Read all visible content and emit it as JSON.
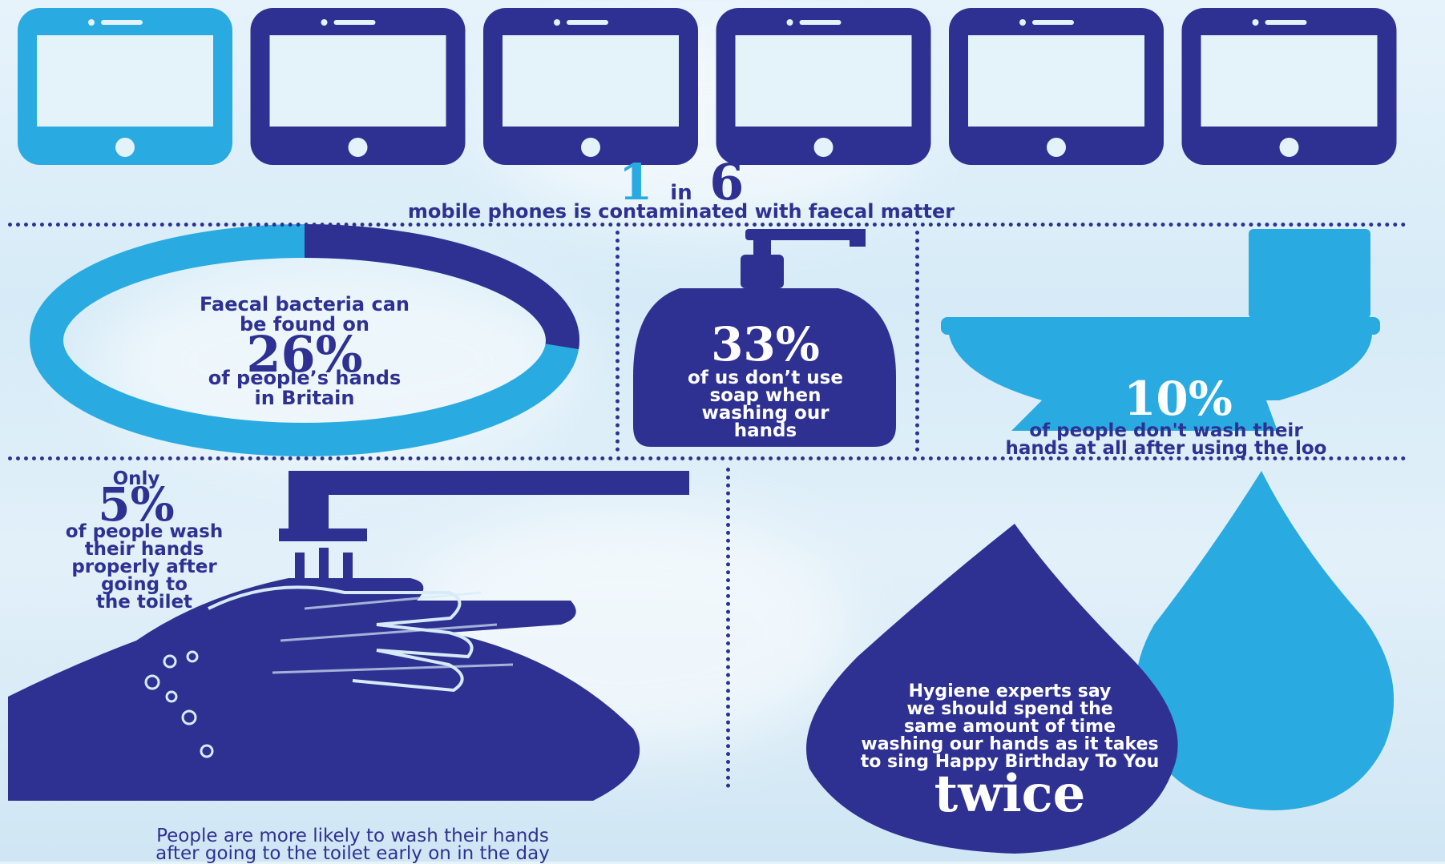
{
  "colors": {
    "navy": "#2e3192",
    "light_blue": "#29abe2",
    "white": "#ffffff"
  },
  "phones": {
    "icon": "mobile-phone-icon",
    "total": 6,
    "highlighted": 1,
    "stat_numerator": "1",
    "stat_in": "in",
    "stat_denominator": "6",
    "caption": "mobile phones is contaminated with faecal matter"
  },
  "hands": {
    "line1": "Faecal bacteria can",
    "line2": "be found on",
    "stat": "26%",
    "line3": "of people’s hands",
    "line4": "in Britain",
    "percent_value": 26
  },
  "soap": {
    "icon": "soap-bottle-icon",
    "stat": "33%",
    "line1": "of us don’t use",
    "line2": "soap when",
    "line3": "washing our",
    "line4": "hands"
  },
  "toilet": {
    "icon": "toilet-icon",
    "stat": "10%",
    "line1": "of people don't wash their",
    "line2": "hands at all after using the loo"
  },
  "washing": {
    "icon": "washing-hands-icon",
    "only": "Only",
    "stat": "5%",
    "line1": "of people wash",
    "line2": "their hands",
    "line3": "properly after",
    "line4": "going to",
    "line5": "the toilet",
    "footer1": "People are more likely to wash their hands",
    "footer2": "after going to the toilet early on in the day"
  },
  "drop": {
    "icon": "water-drop-icon",
    "line1": "Hygiene experts say",
    "line2": "we should spend the",
    "line3": "same amount of time",
    "line4": "washing our hands as it takes",
    "line5": "to sing Happy Birthday To You",
    "emphasis": "twice"
  }
}
